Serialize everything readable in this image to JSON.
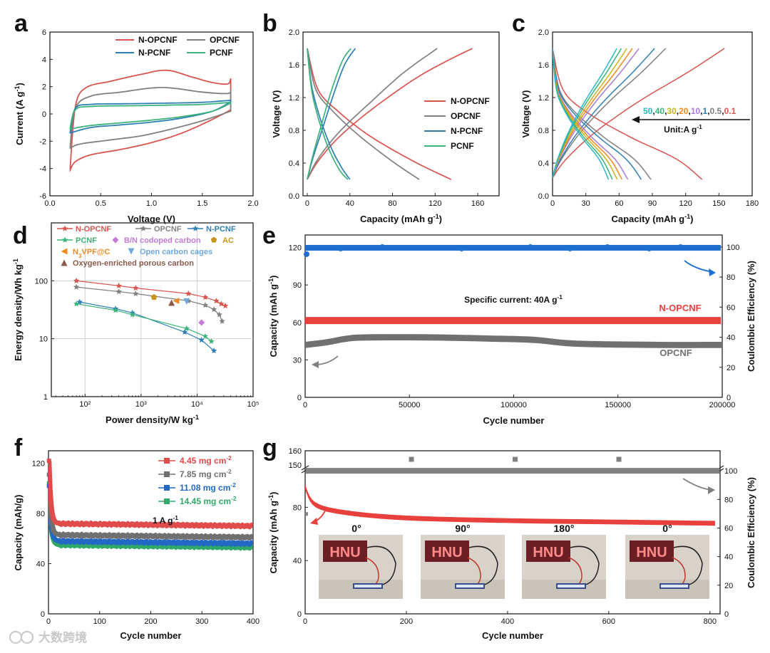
{
  "figure": {
    "panel_letters": [
      "a",
      "b",
      "c",
      "d",
      "e",
      "f",
      "g"
    ],
    "watermark": "大数跨境"
  },
  "chart_data": [
    {
      "panel": "a",
      "type": "line",
      "xlabel": "Voltage (V)",
      "ylabel": "Current (A g-1)",
      "xlim": [
        0,
        2.0
      ],
      "ylim": [
        -6,
        6
      ],
      "xticks": [
        "0.0",
        "0.5",
        "1.0",
        "1.5",
        "2.0"
      ],
      "yticks": [
        "-6",
        "-4",
        "-2",
        "0",
        "2",
        "4",
        "6"
      ],
      "legend_position": "top-right",
      "series": [
        {
          "name": "N-OPCNF",
          "color": "#d9534f",
          "upper": [
            [
              0.2,
              -3.9
            ],
            [
              0.25,
              0.5
            ],
            [
              0.35,
              1.9
            ],
            [
              0.6,
              2.4
            ],
            [
              0.9,
              2.9
            ],
            [
              1.15,
              3.2
            ],
            [
              1.4,
              2.7
            ],
            [
              1.6,
              2.3
            ],
            [
              1.75,
              2.2
            ],
            [
              1.78,
              2.6
            ]
          ],
          "lower": [
            [
              0.2,
              -4.1
            ],
            [
              0.25,
              -3.5
            ],
            [
              0.4,
              -3.0
            ],
            [
              0.7,
              -2.6
            ],
            [
              1.0,
              -2.1
            ],
            [
              1.3,
              -1.4
            ],
            [
              1.6,
              -0.4
            ],
            [
              1.78,
              0.3
            ]
          ]
        },
        {
          "name": "OPCNF",
          "color": "#808080",
          "upper": [
            [
              0.2,
              -2.3
            ],
            [
              0.25,
              0.4
            ],
            [
              0.4,
              1.3
            ],
            [
              0.7,
              1.6
            ],
            [
              1.0,
              1.9
            ],
            [
              1.2,
              1.9
            ],
            [
              1.5,
              1.6
            ],
            [
              1.75,
              1.5
            ],
            [
              1.78,
              1.8
            ]
          ],
          "lower": [
            [
              0.2,
              -2.5
            ],
            [
              0.3,
              -2.2
            ],
            [
              0.6,
              -1.9
            ],
            [
              0.9,
              -1.6
            ],
            [
              1.2,
              -1.1
            ],
            [
              1.5,
              -0.5
            ],
            [
              1.78,
              0.2
            ]
          ]
        },
        {
          "name": "N-PCNF",
          "color": "#2f7fb5",
          "upper": [
            [
              0.2,
              -1.3
            ],
            [
              0.25,
              0.4
            ],
            [
              0.4,
              0.7
            ],
            [
              0.8,
              0.75
            ],
            [
              1.2,
              0.8
            ],
            [
              1.5,
              0.85
            ],
            [
              1.78,
              1.0
            ]
          ],
          "lower": [
            [
              0.2,
              -1.4
            ],
            [
              0.4,
              -1.0
            ],
            [
              0.7,
              -0.8
            ],
            [
              1.0,
              -0.6
            ],
            [
              1.3,
              -0.3
            ],
            [
              1.6,
              0.2
            ],
            [
              1.78,
              0.9
            ]
          ]
        },
        {
          "name": "PCNF",
          "color": "#3bb37a",
          "upper": [
            [
              0.2,
              -1.0
            ],
            [
              0.25,
              0.3
            ],
            [
              0.4,
              0.55
            ],
            [
              0.8,
              0.6
            ],
            [
              1.2,
              0.65
            ],
            [
              1.5,
              0.7
            ],
            [
              1.78,
              0.85
            ]
          ],
          "lower": [
            [
              0.2,
              -1.1
            ],
            [
              0.4,
              -0.85
            ],
            [
              0.7,
              -0.65
            ],
            [
              1.0,
              -0.45
            ],
            [
              1.3,
              -0.2
            ],
            [
              1.6,
              0.2
            ],
            [
              1.78,
              0.8
            ]
          ]
        }
      ]
    },
    {
      "panel": "b",
      "type": "line",
      "xlabel": "Capacity (mAh g-1)",
      "ylabel": "Voltage (V)",
      "xlim": [
        -4,
        180
      ],
      "ylim": [
        0,
        2.0
      ],
      "xticks": [
        "0",
        "40",
        "80",
        "120",
        "160"
      ],
      "yticks": [
        "0.0",
        "0.4",
        "0.8",
        "1.2",
        "1.6",
        "2.0"
      ],
      "legend_position": "center-right",
      "series": [
        {
          "name": "N-OPCNF",
          "color": "#d9534f",
          "charge": [
            [
              0,
              0.2
            ],
            [
              10,
              0.42
            ],
            [
              30,
              0.72
            ],
            [
              60,
              1.05
            ],
            [
              100,
              1.42
            ],
            [
              130,
              1.64
            ],
            [
              155,
              1.8
            ]
          ],
          "discharge": [
            [
              0,
              1.8
            ],
            [
              10,
              1.3
            ],
            [
              30,
              1.02
            ],
            [
              60,
              0.72
            ],
            [
              100,
              0.42
            ],
            [
              135,
              0.2
            ]
          ]
        },
        {
          "name": "OPCNF",
          "color": "#808080",
          "charge": [
            [
              0,
              0.2
            ],
            [
              10,
              0.45
            ],
            [
              30,
              0.78
            ],
            [
              60,
              1.15
            ],
            [
              90,
              1.5
            ],
            [
              122,
              1.8
            ]
          ],
          "discharge": [
            [
              0,
              1.8
            ],
            [
              8,
              1.3
            ],
            [
              25,
              1.02
            ],
            [
              50,
              0.72
            ],
            [
              80,
              0.42
            ],
            [
              105,
              0.2
            ]
          ]
        },
        {
          "name": "N-PCNF",
          "color": "#2f7fb5",
          "charge": [
            [
              0,
              0.2
            ],
            [
              5,
              0.45
            ],
            [
              15,
              0.85
            ],
            [
              25,
              1.25
            ],
            [
              35,
              1.6
            ],
            [
              45,
              1.8
            ]
          ],
          "discharge": [
            [
              0,
              1.8
            ],
            [
              4,
              1.35
            ],
            [
              12,
              0.95
            ],
            [
              22,
              0.6
            ],
            [
              32,
              0.35
            ],
            [
              40,
              0.2
            ]
          ]
        },
        {
          "name": "PCNF",
          "color": "#3bb37a",
          "charge": [
            [
              0,
              0.2
            ],
            [
              5,
              0.48
            ],
            [
              14,
              0.9
            ],
            [
              23,
              1.3
            ],
            [
              33,
              1.65
            ],
            [
              41,
              1.8
            ]
          ],
          "discharge": [
            [
              0,
              1.8
            ],
            [
              4,
              1.3
            ],
            [
              11,
              0.92
            ],
            [
              20,
              0.58
            ],
            [
              30,
              0.32
            ],
            [
              38,
              0.2
            ]
          ]
        }
      ]
    },
    {
      "panel": "c",
      "type": "line",
      "xlabel": "Capacity (mAh g-1)",
      "ylabel": "Voltage (V)",
      "xlim": [
        0,
        180
      ],
      "ylim": [
        0,
        2.0
      ],
      "xticks": [
        "0",
        "30",
        "60",
        "90",
        "120",
        "150",
        "180"
      ],
      "yticks": [
        "0.0",
        "0.4",
        "0.8",
        "1.2",
        "1.6",
        "2.0"
      ],
      "annotation": {
        "rates": [
          "50",
          "40",
          "30",
          "20",
          "10",
          "1",
          "0.5",
          "0.1"
        ],
        "unit": "Unit:A g-1"
      },
      "series": [
        {
          "name": "0.1",
          "color": "#d9534f",
          "capacity": 155
        },
        {
          "name": "0.5",
          "color": "#808080",
          "capacity": 102
        },
        {
          "name": "1",
          "color": "#2f7fb5",
          "capacity": 92
        },
        {
          "name": "10",
          "color": "#a87bd9",
          "capacity": 78
        },
        {
          "name": "20",
          "color": "#f08a24",
          "capacity": 72
        },
        {
          "name": "30",
          "color": "#c9b51a",
          "capacity": 67
        },
        {
          "name": "40",
          "color": "#3bb37a",
          "capacity": 62
        },
        {
          "name": "50",
          "color": "#2ab7c7",
          "capacity": 58
        }
      ]
    },
    {
      "panel": "d",
      "type": "scatter",
      "xlabel": "Power density/W kg-1",
      "ylabel": "Energy density/Wh kg-1",
      "xscale": "log",
      "yscale": "log",
      "xlim": [
        25,
        100000
      ],
      "ylim": [
        1,
        1000
      ],
      "xticks": [
        "10²",
        "10³",
        "10⁴",
        "10⁵"
      ],
      "yticks": [
        "1",
        "10",
        "100"
      ],
      "legend_position": "top",
      "series": [
        {
          "name": "N-OPCNF",
          "color": "#d9534f",
          "marker": "star",
          "line": true,
          "points": [
            [
              70,
              100
            ],
            [
              400,
              82
            ],
            [
              800,
              75
            ],
            [
              7000,
              60
            ],
            [
              14000,
              52
            ],
            [
              22000,
              45
            ],
            [
              27000,
              40
            ],
            [
              32000,
              37
            ]
          ]
        },
        {
          "name": "OPCNF",
          "color": "#808080",
          "marker": "star",
          "line": true,
          "points": [
            [
              70,
              78
            ],
            [
              400,
              65
            ],
            [
              800,
              60
            ],
            [
              7000,
              45
            ],
            [
              14000,
              38
            ],
            [
              20000,
              32
            ],
            [
              25000,
              26
            ],
            [
              28000,
              20
            ]
          ]
        },
        {
          "name": "N-PCNF",
          "color": "#2f7fb5",
          "marker": "star",
          "line": true,
          "points": [
            [
              80,
              43
            ],
            [
              350,
              33
            ],
            [
              700,
              28
            ],
            [
              6000,
              13
            ],
            [
              12000,
              9.5
            ],
            [
              20000,
              6.2
            ]
          ]
        },
        {
          "name": "PCNF",
          "color": "#3bb37a",
          "marker": "star",
          "line": true,
          "points": [
            [
              70,
              40
            ],
            [
              350,
              31
            ],
            [
              700,
              26
            ],
            [
              6500,
              15
            ],
            [
              14000,
              11
            ],
            [
              18000,
              9
            ]
          ]
        },
        {
          "name": "B/N codoped carbon",
          "color": "#c57ad9",
          "marker": "diamond",
          "line": false,
          "points": [
            [
              12000,
              19
            ]
          ]
        },
        {
          "name": "AC",
          "color": "#c8951c",
          "marker": "pentagon",
          "line": false,
          "points": [
            [
              1700,
              52
            ]
          ]
        },
        {
          "name": "N3VPF@C",
          "color": "#f08a24",
          "marker": "triangle-left",
          "line": false,
          "points": [
            [
              4200,
              45
            ]
          ]
        },
        {
          "name": "Open carbon cages",
          "color": "#6fa8dc",
          "marker": "triangle-down",
          "line": false,
          "points": [
            [
              6500,
              44
            ]
          ]
        },
        {
          "name": "Oxygen-enriched porous carbon",
          "color": "#8b5a4a",
          "marker": "triangle-up",
          "line": false,
          "points": [
            [
              3500,
              42
            ]
          ]
        }
      ]
    },
    {
      "panel": "e",
      "type": "scatter",
      "xlabel": "Cycle number",
      "ylabel": "Capacity (mAh g-1)",
      "y2label": "Coulombic Efficiency (%)",
      "xlim": [
        0,
        200000
      ],
      "ylim": [
        0,
        120
      ],
      "y2lim": [
        0,
        100
      ],
      "xticks": [
        "0",
        "50000",
        "100000",
        "150000",
        "200000"
      ],
      "yticks": [
        "0",
        "30",
        "60",
        "90",
        "120"
      ],
      "y2ticks": [
        "0",
        "20",
        "40",
        "60",
        "80",
        "100"
      ],
      "annotation": "Specific current: 40A g-1",
      "series": [
        {
          "name": "N-OPCNF",
          "color": "#e8403d",
          "axis": "left",
          "value": 61.5
        },
        {
          "name": "OPCNF",
          "color": "#707070",
          "axis": "left",
          "points": [
            [
              0,
              42
            ],
            [
              10000,
              44
            ],
            [
              20000,
              47
            ],
            [
              30000,
              48
            ],
            [
              60000,
              48
            ],
            [
              90000,
              47
            ],
            [
              110000,
              46
            ],
            [
              130000,
              43
            ],
            [
              170000,
              42
            ],
            [
              200000,
              42
            ]
          ]
        },
        {
          "name": "Coulombic Efficiency",
          "color": "#1f6fd1",
          "axis": "right",
          "value": 99.5
        }
      ]
    },
    {
      "panel": "f",
      "type": "scatter",
      "xlabel": "Cycle number",
      "ylabel": "Capacity (mAh/g)",
      "xlim": [
        0,
        400
      ],
      "ylim": [
        0,
        130
      ],
      "xticks": [
        "0",
        "100",
        "200",
        "300",
        "400"
      ],
      "yticks": [
        "0",
        "40",
        "80",
        "120"
      ],
      "annotation": "1 A g-1",
      "legend_position": "top-right",
      "series": [
        {
          "name": "4.45 mg cm-2",
          "color": "#e04b4b",
          "start": 122,
          "plateau": 72
        },
        {
          "name": "7.85 mg cm-2",
          "color": "#707070",
          "start": 111,
          "plateau": 63
        },
        {
          "name": "11.08 mg cm-2",
          "color": "#2368c4",
          "start": 102,
          "plateau": 58
        },
        {
          "name": "14.45 mg cm-2",
          "color": "#2fa868",
          "start": 104,
          "plateau": 55
        }
      ]
    },
    {
      "panel": "g",
      "type": "scatter",
      "xlabel": "Cycle number",
      "ylabel": "Capacity (mAh g-1)",
      "y2label": "Coulombic Efficiency (%)",
      "xlim": [
        0,
        820
      ],
      "ylim": [
        0,
        160
      ],
      "y2lim": [
        0,
        120
      ],
      "xticks": [
        "0",
        "200",
        "400",
        "600",
        "800"
      ],
      "yticks": [
        "0",
        "40",
        "80",
        "150",
        "160"
      ],
      "y2ticks": [
        "0",
        "20",
        "40",
        "60",
        "80",
        "100"
      ],
      "bend_angles": [
        "0°",
        "90°",
        "180°",
        "0°"
      ],
      "inset_sign_text": "HNU",
      "series": [
        {
          "name": "Capacity",
          "color": "#e8403d",
          "axis": "left",
          "points": [
            [
              0,
              95
            ],
            [
              20,
              82
            ],
            [
              80,
              76
            ],
            [
              200,
              72
            ],
            [
              400,
              70
            ],
            [
              600,
              69
            ],
            [
              810,
              68
            ]
          ]
        },
        {
          "name": "Coulombic Efficiency",
          "color": "#808080",
          "axis": "right",
          "value": 100
        }
      ]
    }
  ]
}
